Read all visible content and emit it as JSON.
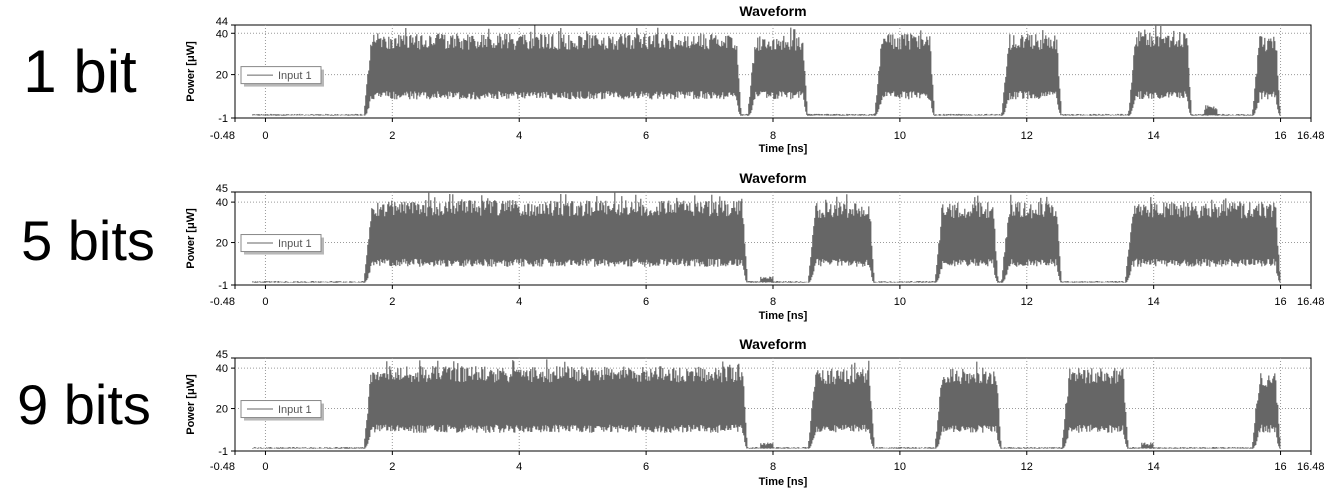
{
  "chart_data": [
    {
      "type": "line",
      "row_label": "1 bit",
      "title": "Waveform",
      "xlabel": "Time [ns]",
      "ylabel": "Power [μW]",
      "xlim": [
        -0.48,
        16.48
      ],
      "ylim": [
        -1,
        44
      ],
      "x_ticks": [
        {
          "v": -0.48,
          "t": "-0.48"
        },
        {
          "v": 0,
          "t": "0"
        },
        {
          "v": 2,
          "t": "2"
        },
        {
          "v": 4,
          "t": "4"
        },
        {
          "v": 6,
          "t": "6"
        },
        {
          "v": 8,
          "t": "8"
        },
        {
          "v": 10,
          "t": "10"
        },
        {
          "v": 12,
          "t": "12"
        },
        {
          "v": 14,
          "t": "14"
        },
        {
          "v": 16,
          "t": "16"
        },
        {
          "v": 16.48,
          "t": "16.48"
        }
      ],
      "y_ticks": [
        {
          "v": -1,
          "t": "-1"
        },
        {
          "v": 20,
          "t": "20"
        },
        {
          "v": 40,
          "t": "40"
        },
        {
          "v": 44,
          "t": "44"
        }
      ],
      "legend": "Input 1",
      "legend_position": "left",
      "grid": true,
      "line_color": "#666666",
      "pulses": [
        {
          "start": 1.55,
          "end": 7.5,
          "top": 36,
          "bottom": 8
        },
        {
          "start": 7.6,
          "end": 8.55,
          "top": 35,
          "bottom": 8
        },
        {
          "start": 9.6,
          "end": 10.55,
          "top": 36,
          "bottom": 8
        },
        {
          "start": 11.6,
          "end": 12.55,
          "top": 36,
          "bottom": 8
        },
        {
          "start": 13.6,
          "end": 14.6,
          "top": 37,
          "bottom": 8
        },
        {
          "start": 15.55,
          "end": 16.0,
          "top": 35,
          "bottom": 8
        }
      ],
      "bumps": [
        {
          "start": 14.8,
          "end": 15.0,
          "top": 5
        }
      ]
    },
    {
      "type": "line",
      "row_label": "5 bits",
      "title": "Waveform",
      "xlabel": "Time [ns]",
      "ylabel": "Power [μW]",
      "xlim": [
        -0.48,
        16.48
      ],
      "ylim": [
        -1,
        45
      ],
      "x_ticks": [
        {
          "v": -0.48,
          "t": "-0.48"
        },
        {
          "v": 0,
          "t": "0"
        },
        {
          "v": 2,
          "t": "2"
        },
        {
          "v": 4,
          "t": "4"
        },
        {
          "v": 6,
          "t": "6"
        },
        {
          "v": 8,
          "t": "8"
        },
        {
          "v": 10,
          "t": "10"
        },
        {
          "v": 12,
          "t": "12"
        },
        {
          "v": 14,
          "t": "14"
        },
        {
          "v": 16,
          "t": "16"
        },
        {
          "v": 16.48,
          "t": "16.48"
        }
      ],
      "y_ticks": [
        {
          "v": -1,
          "t": "-1"
        },
        {
          "v": 20,
          "t": "20"
        },
        {
          "v": 40,
          "t": "40"
        },
        {
          "v": 45,
          "t": "45"
        }
      ],
      "legend": "Input 1",
      "legend_position": "left",
      "grid": true,
      "line_color": "#666666",
      "pulses": [
        {
          "start": 1.55,
          "end": 7.6,
          "top": 37,
          "bottom": 8
        },
        {
          "start": 8.55,
          "end": 9.6,
          "top": 36,
          "bottom": 8
        },
        {
          "start": 10.55,
          "end": 11.55,
          "top": 36,
          "bottom": 8
        },
        {
          "start": 11.6,
          "end": 12.55,
          "top": 36,
          "bottom": 8
        },
        {
          "start": 13.55,
          "end": 16.0,
          "top": 36,
          "bottom": 8
        }
      ],
      "bumps": [
        {
          "start": 7.8,
          "end": 8.0,
          "top": 3
        }
      ]
    },
    {
      "type": "line",
      "row_label": "9 bits",
      "title": "Waveform",
      "xlabel": "Time [ns]",
      "ylabel": "Power [μW]",
      "xlim": [
        -0.48,
        16.48
      ],
      "ylim": [
        -1,
        45
      ],
      "x_ticks": [
        {
          "v": -0.48,
          "t": "-0.48"
        },
        {
          "v": 0,
          "t": "0"
        },
        {
          "v": 2,
          "t": "2"
        },
        {
          "v": 4,
          "t": "4"
        },
        {
          "v": 6,
          "t": "6"
        },
        {
          "v": 8,
          "t": "8"
        },
        {
          "v": 10,
          "t": "10"
        },
        {
          "v": 12,
          "t": "12"
        },
        {
          "v": 14,
          "t": "14"
        },
        {
          "v": 16,
          "t": "16"
        },
        {
          "v": 16.48,
          "t": "16.48"
        }
      ],
      "y_ticks": [
        {
          "v": -1,
          "t": "-1"
        },
        {
          "v": 20,
          "t": "20"
        },
        {
          "v": 40,
          "t": "40"
        },
        {
          "v": 45,
          "t": "45"
        }
      ],
      "legend": "Input 1",
      "legend_position": "left",
      "grid": true,
      "line_color": "#666666",
      "pulses": [
        {
          "start": 1.55,
          "end": 7.6,
          "top": 37,
          "bottom": 8
        },
        {
          "start": 8.55,
          "end": 9.6,
          "top": 36,
          "bottom": 8
        },
        {
          "start": 10.55,
          "end": 11.6,
          "top": 36,
          "bottom": 8
        },
        {
          "start": 12.55,
          "end": 13.6,
          "top": 36,
          "bottom": 8
        },
        {
          "start": 15.55,
          "end": 16.0,
          "top": 34,
          "bottom": 8
        }
      ],
      "bumps": [
        {
          "start": 7.8,
          "end": 8.0,
          "top": 3
        },
        {
          "start": 13.8,
          "end": 14.0,
          "top": 3
        }
      ]
    }
  ]
}
